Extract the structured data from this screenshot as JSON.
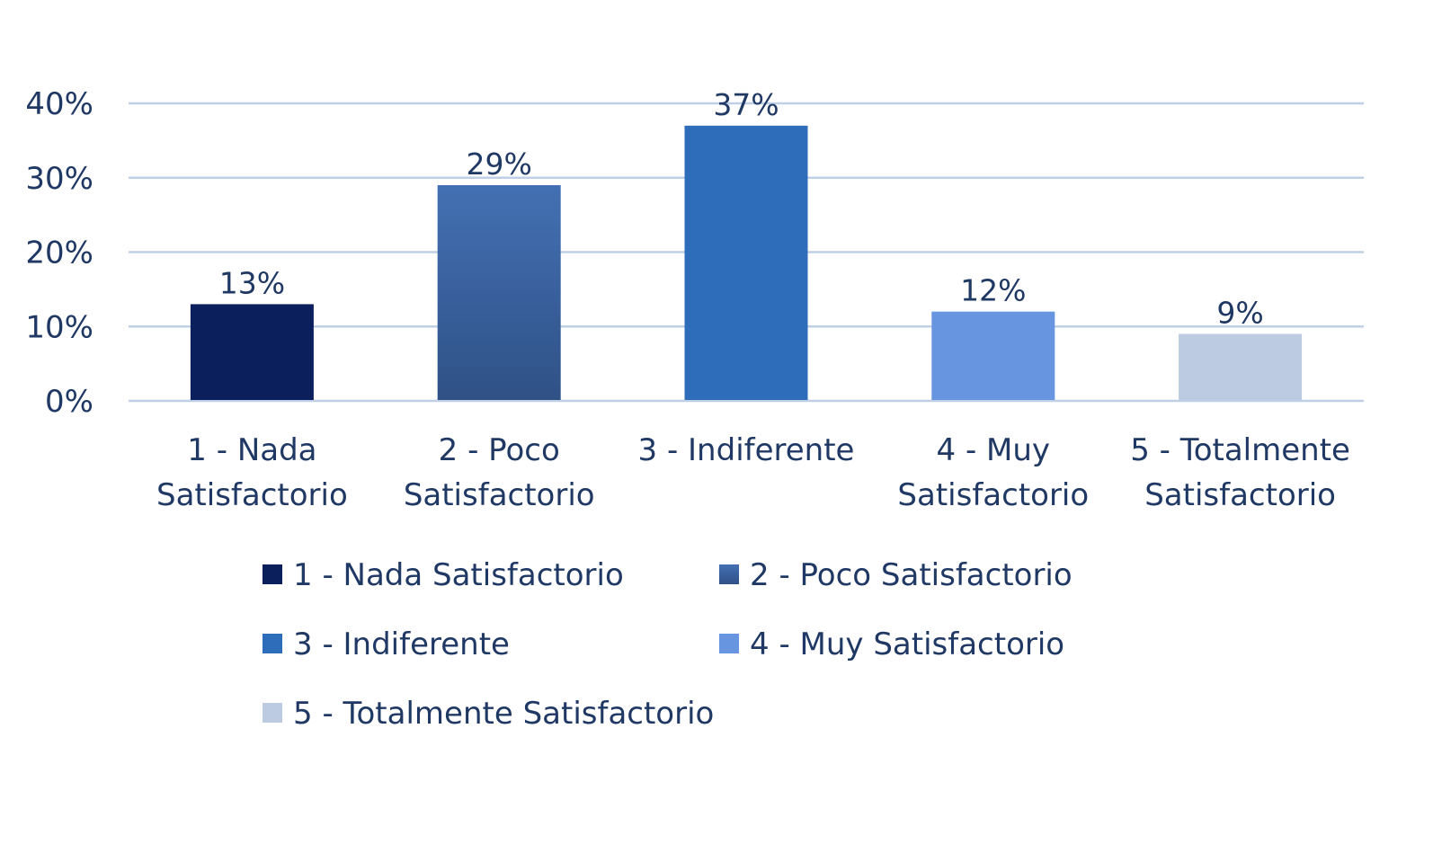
{
  "colors": {
    "text": "#1F3864",
    "grid": "#BFD0E6",
    "axis": "#BFD0E6"
  },
  "chart_data": {
    "type": "bar",
    "title": "",
    "xlabel": "",
    "ylabel": "",
    "ylim": [
      0,
      40
    ],
    "ytick_values": [
      0,
      10,
      20,
      30,
      40
    ],
    "ytick_labels": [
      "0%",
      "10%",
      "20%",
      "30%",
      "40%"
    ],
    "grid": true,
    "legend_position": "bottom",
    "categories": [
      {
        "lines": [
          "1 - Nada",
          "Satisfactorio"
        ],
        "value": 13,
        "value_label": "13%",
        "legend": "1 - Nada Satisfactorio",
        "color": "#0B1F5C"
      },
      {
        "lines": [
          "2 - Poco",
          "Satisfactorio"
        ],
        "value": 29,
        "value_label": "29%",
        "legend": "2 - Poco Satisfactorio",
        "color": "#365C9A"
      },
      {
        "lines": [
          "3 - Indiferente"
        ],
        "value": 37,
        "value_label": "37%",
        "legend": "3 - Indiferente",
        "color": "#2D6DB9"
      },
      {
        "lines": [
          "4 - Muy",
          "Satisfactorio"
        ],
        "value": 12,
        "value_label": "12%",
        "legend": "4 - Muy Satisfactorio",
        "color": "#6795E0"
      },
      {
        "lines": [
          "5 - Totalmente",
          "Satisfactorio"
        ],
        "value": 9,
        "value_label": "9%",
        "legend": "5 - Totalmente Satisfactorio",
        "color": "#BCCBE2"
      }
    ]
  }
}
